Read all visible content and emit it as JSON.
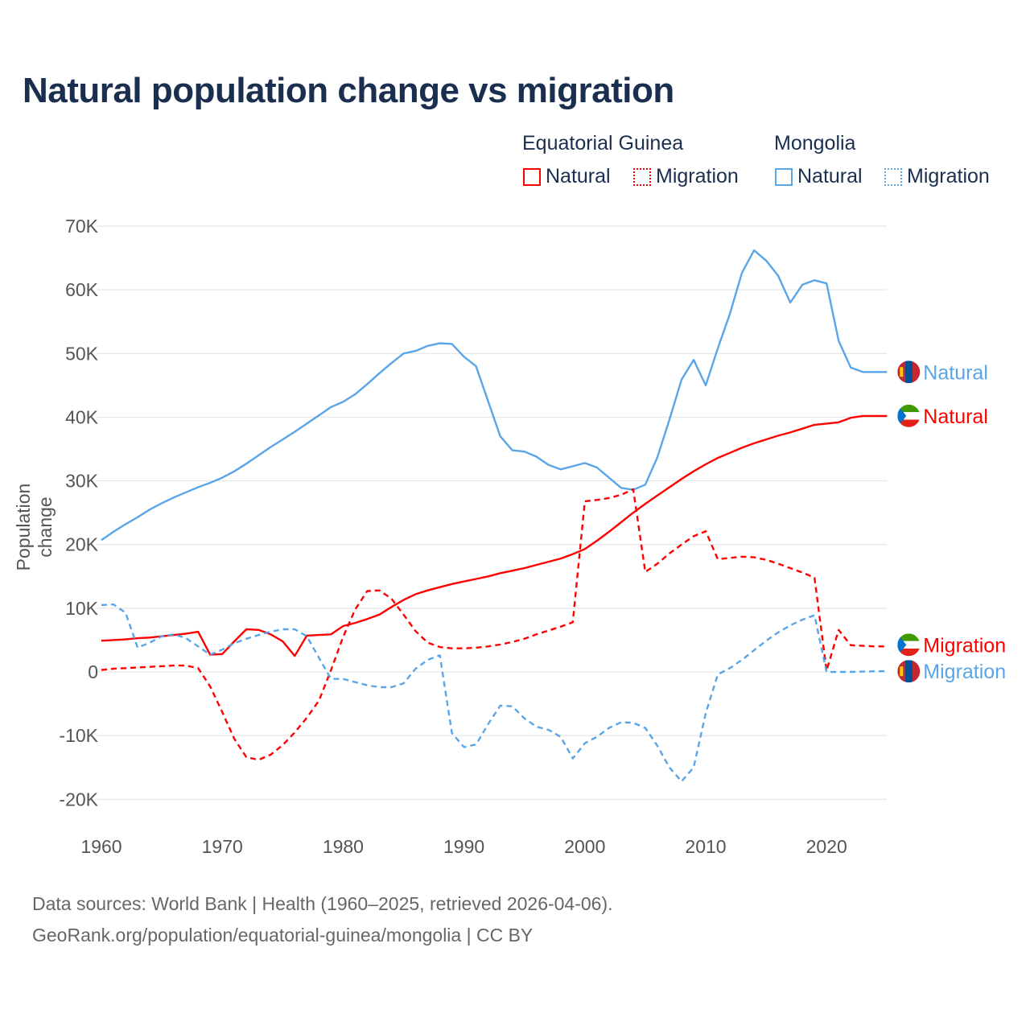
{
  "title": "Natural population change vs migration",
  "legend": {
    "groups": [
      {
        "name": "Equatorial Guinea",
        "items": [
          {
            "label": "Natural",
            "style": "solid"
          },
          {
            "label": "Migration",
            "style": "dotted"
          }
        ],
        "color": "#ff0000"
      },
      {
        "name": "Mongolia",
        "items": [
          {
            "label": "Natural",
            "style": "solid"
          },
          {
            "label": "Migration",
            "style": "dotted"
          }
        ],
        "color": "#5aa5e8"
      }
    ]
  },
  "footer": {
    "line1": "Data sources: World Bank | Health (1960–2025, retrieved 2026-04-06).",
    "line2": "GeoRank.org/population/equatorial-guinea/mongolia | CC BY"
  },
  "chart_data": {
    "type": "line",
    "title": "Natural population change vs migration",
    "xlabel": "",
    "ylabel": "Population change",
    "xlim": [
      1960,
      2025
    ],
    "ylim": [
      -20000,
      70000
    ],
    "xticks": [
      1960,
      1970,
      1980,
      1990,
      2000,
      2010,
      2020
    ],
    "xtick_labels": [
      "1960",
      "1970",
      "1980",
      "1990",
      "2000",
      "2010",
      "2020"
    ],
    "yticks": [
      -20000,
      -10000,
      0,
      10000,
      20000,
      30000,
      40000,
      50000,
      60000,
      70000
    ],
    "ytick_labels": [
      "-20K",
      "-10K",
      "0",
      "10K",
      "20K",
      "30K",
      "40K",
      "50K",
      "60K",
      "70K"
    ],
    "grid": true,
    "legend_position": "top-right",
    "x_start": 1960,
    "series": [
      {
        "name": "Mongolia Natural",
        "end_label": "Natural",
        "color": "#5aa5e8",
        "dash": false,
        "flag": "mongolia",
        "values_k": [
          20.7,
          22.0,
          23.2,
          24.3,
          25.5,
          26.5,
          27.4,
          28.2,
          29.0,
          29.7,
          30.5,
          31.5,
          32.7,
          34.0,
          35.3,
          36.5,
          37.7,
          39.0,
          40.3,
          41.6,
          42.4,
          43.6,
          45.2,
          46.9,
          48.5,
          50.0,
          50.4,
          51.2,
          51.6,
          51.5,
          49.5,
          48.0,
          42.5,
          37.0,
          34.8,
          34.6,
          33.8,
          32.5,
          31.8,
          32.3,
          32.8,
          32.1,
          30.5,
          28.9,
          28.6,
          29.4,
          33.7,
          39.6,
          45.9,
          49.0,
          45.0,
          50.8,
          56.2,
          62.7,
          66.2,
          64.6,
          62.2,
          58.0,
          60.8,
          61.5,
          61.0,
          52.0,
          47.8,
          47.1,
          47.1,
          47.1
        ]
      },
      {
        "name": "Equatorial Guinea Natural",
        "end_label": "Natural",
        "color": "#ff0000",
        "dash": false,
        "flag": "equatorial-guinea",
        "values_k": [
          4.9,
          5.0,
          5.1,
          5.3,
          5.4,
          5.6,
          5.8,
          6.0,
          6.3,
          2.7,
          2.8,
          4.8,
          6.7,
          6.6,
          5.9,
          4.8,
          2.5,
          5.7,
          5.8,
          5.9,
          7.2,
          7.7,
          8.3,
          9.0,
          10.2,
          11.3,
          12.2,
          12.8,
          13.3,
          13.8,
          14.2,
          14.6,
          15.0,
          15.5,
          15.9,
          16.3,
          16.8,
          17.3,
          17.8,
          18.5,
          19.3,
          20.6,
          22.0,
          23.5,
          25.0,
          26.4,
          27.7,
          29.0,
          30.3,
          31.5,
          32.6,
          33.6,
          34.4,
          35.2,
          35.9,
          36.5,
          37.1,
          37.6,
          38.2,
          38.8,
          39.0,
          39.2,
          39.9,
          40.2,
          40.2,
          40.2
        ]
      },
      {
        "name": "Equatorial Guinea Migration",
        "end_label": "Migration",
        "color": "#ff0000",
        "dash": true,
        "flag": "equatorial-guinea",
        "values_k": [
          0.3,
          0.5,
          0.6,
          0.7,
          0.8,
          0.9,
          1.0,
          1.0,
          0.6,
          -2.3,
          -6.3,
          -10.5,
          -13.4,
          -13.8,
          -13.0,
          -11.5,
          -9.5,
          -7.2,
          -4.5,
          0.3,
          5.5,
          9.8,
          12.7,
          12.8,
          11.5,
          9.0,
          6.4,
          4.6,
          3.9,
          3.7,
          3.7,
          3.8,
          4.0,
          4.3,
          4.7,
          5.2,
          5.9,
          6.5,
          7.1,
          7.8,
          26.8,
          27.0,
          27.3,
          27.8,
          28.7,
          15.7,
          17.0,
          18.6,
          20.0,
          21.3,
          22.1,
          17.7,
          17.9,
          18.1,
          18.0,
          17.6,
          17.0,
          16.3,
          15.6,
          14.8,
          0.2,
          6.6,
          4.2,
          4.1,
          4.0,
          4.0
        ]
      },
      {
        "name": "Mongolia Migration",
        "end_label": "Migration",
        "color": "#5aa5e8",
        "dash": true,
        "flag": "mongolia",
        "values_k": [
          10.5,
          10.6,
          9.3,
          3.8,
          4.6,
          5.6,
          5.9,
          5.3,
          4.0,
          2.7,
          3.5,
          4.5,
          5.2,
          5.8,
          6.3,
          6.7,
          6.7,
          5.6,
          2.2,
          -1.1,
          -1.1,
          -1.6,
          -2.1,
          -2.4,
          -2.4,
          -1.8,
          0.5,
          1.9,
          2.6,
          -9.6,
          -11.8,
          -11.4,
          -8.2,
          -5.3,
          -5.4,
          -7.3,
          -8.6,
          -9.1,
          -10.2,
          -13.6,
          -11.2,
          -10.2,
          -8.8,
          -7.9,
          -8.0,
          -8.8,
          -11.6,
          -15.0,
          -17.2,
          -15.0,
          -6.5,
          -0.4,
          0.6,
          1.9,
          3.4,
          4.9,
          6.2,
          7.3,
          8.2,
          8.9,
          0.0,
          0.0,
          0.0,
          0.05,
          0.1,
          0.1
        ]
      }
    ]
  }
}
